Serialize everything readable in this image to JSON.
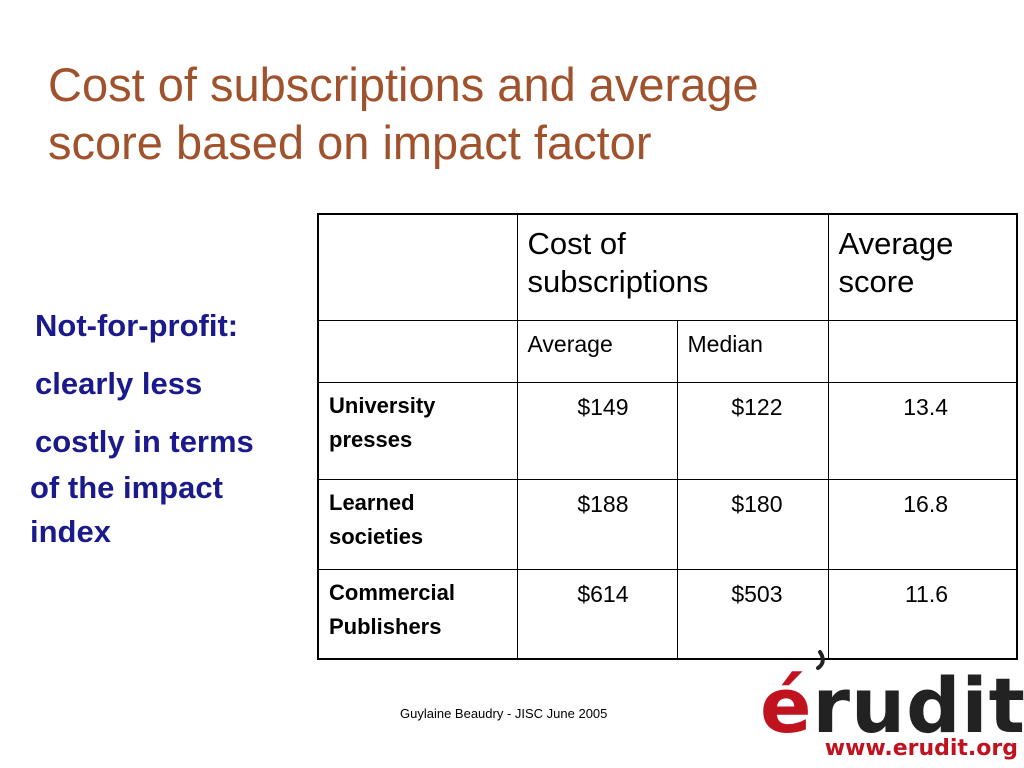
{
  "slide": {
    "title_line1": "Cost of subscriptions and average",
    "title_line2": "score based on impact factor"
  },
  "side_note": {
    "lines": [
      "Not-for-profit:",
      "clearly less",
      "costly in terms",
      "of the impact",
      "index"
    ]
  },
  "table": {
    "header": {
      "cost_line1": "Cost of",
      "cost_line2": "subscriptions",
      "score_line1": "Average",
      "score_line2": "score"
    },
    "subheader": {
      "average": "Average",
      "median": "Median"
    },
    "rows": [
      {
        "label_line1": "University",
        "label_line2": "presses",
        "average": "$149",
        "median": "$122",
        "score": "13.4"
      },
      {
        "label_line1": "Learned",
        "label_line2": "societies",
        "average": "$188",
        "median": "$180",
        "score": "16.8"
      },
      {
        "label_line1": "Commercial",
        "label_line2": "Publishers",
        "average": "$614",
        "median": "$503",
        "score": "11.6"
      }
    ]
  },
  "footer": {
    "credit": "Guylaine Beaudry - JISC June 2005"
  },
  "logo": {
    "accent_letter": "é",
    "rest": "rudit",
    "url": "www.erudit.org",
    "colors": {
      "accent": "#c1121f",
      "dark": "#222222"
    }
  },
  "colors": {
    "title": "#a0522d",
    "side_note": "#1a1a8c"
  }
}
